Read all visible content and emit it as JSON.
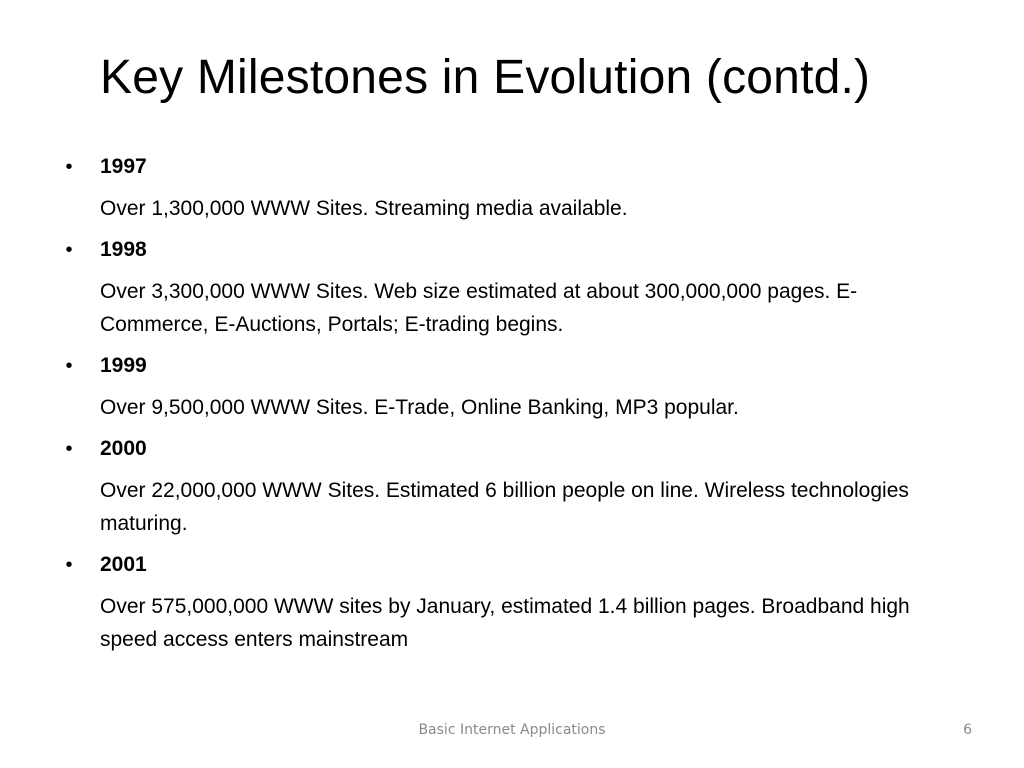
{
  "slide": {
    "title": "Key Milestones in Evolution (contd.)",
    "bullet_symbol": "•",
    "milestones": [
      {
        "year": "1997",
        "description": "Over 1,300,000 WWW Sites. Streaming media available."
      },
      {
        "year": "1998",
        "description": "Over 3,300,000 WWW Sites. Web size estimated at about 300,000,000 pages. E-Commerce, E-Auctions, Portals; E-trading begins."
      },
      {
        "year": "1999",
        "description": "Over 9,500,000 WWW Sites.  E-Trade, Online Banking, MP3 popular."
      },
      {
        "year": "2000",
        "description": "Over 22,000,000 WWW Sites. Estimated 6 billion people on line. Wireless technologies maturing."
      },
      {
        "year": "2001",
        "description": "Over 575,000,000 WWW sites by January, estimated 1.4 billion pages. Broadband high speed access enters mainstream"
      }
    ],
    "footer": {
      "text": "Basic Internet Applications",
      "page_number": "6"
    }
  }
}
